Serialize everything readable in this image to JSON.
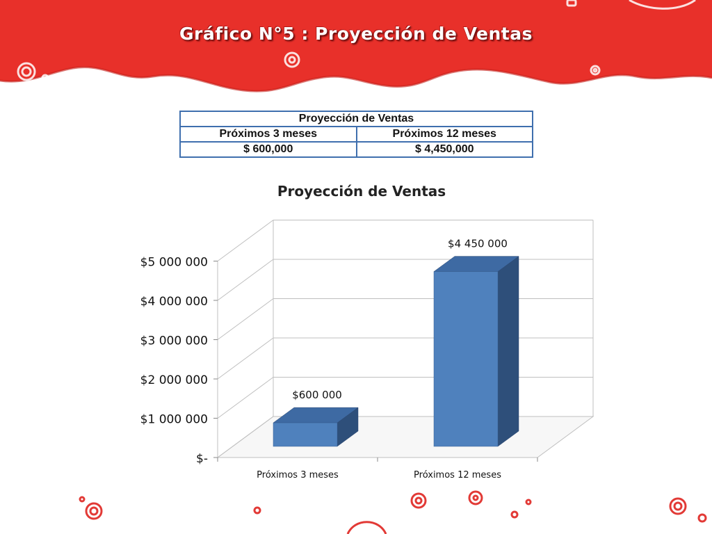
{
  "slide": {
    "title": "Gráfico N°5 : Proyección de Ventas"
  },
  "summary_table": {
    "title": "Proyección de Ventas",
    "headers": [
      "Próximos 3 meses",
      "Próximos 12 meses"
    ],
    "values": [
      "$ 600,000",
      "$ 4,450,000"
    ]
  },
  "chart_data": {
    "type": "bar",
    "title": "Proyección de Ventas",
    "categories": [
      "Próximos 3 meses",
      "Próximos 12 meses"
    ],
    "values": [
      600000,
      4450000
    ],
    "data_labels": [
      "$600 000",
      "$4 450 000"
    ],
    "ylim": [
      0,
      5000000
    ],
    "yticks": [
      0,
      1000000,
      2000000,
      3000000,
      4000000,
      5000000
    ],
    "ytick_labels": [
      "$-",
      "$1 000 000",
      "$2 000 000",
      "$3 000 000",
      "$4 000 000",
      "$5 000 000"
    ],
    "grid": true,
    "legend": "none",
    "style": "3d",
    "colors": {
      "bar_front": "#4f81bd",
      "bar_top": "#3e6aa3",
      "bar_side": "#2e4f7a",
      "grid": "#bfbfbf"
    }
  },
  "theme": {
    "banner": "#e8302a",
    "banner_dark": "#c0201d",
    "swirl": "#e23a36"
  }
}
